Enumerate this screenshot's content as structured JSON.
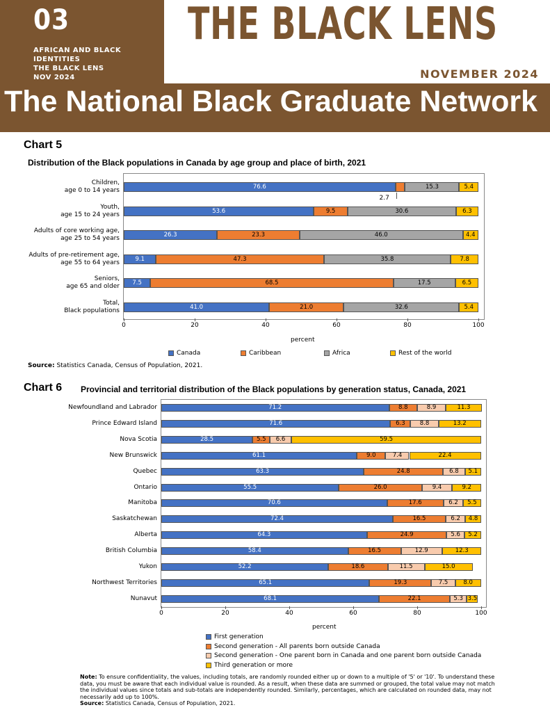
{
  "header": {
    "issue_number": "03",
    "issue_lines": [
      "AFRICAN AND BLACK",
      "IDENTITIES",
      "THE BLACK LENS",
      "NOV 2024"
    ],
    "logo": "THE BLACK LENS",
    "date": "NOVEMBER 2024",
    "banner": "The National Black Graduate Network"
  },
  "colors": {
    "brown": "#7b5530",
    "canada": "#4472c4",
    "caribbean": "#ed7d31",
    "africa": "#a5a5a5",
    "rest": "#ffc000",
    "first": "#4472c4",
    "second_all": "#ed7d31",
    "second_one": "#f8cbad",
    "third": "#ffc000"
  },
  "chart5": {
    "label": "Chart 5",
    "source_prefix": "Source:",
    "source_text": "Statistics Canada, Census of Population, 2021.",
    "callout": "2.7"
  },
  "chart6": {
    "label": "Chart 6",
    "source_prefix": "Source:",
    "source_text": "Statistics Canada, Census of Population, 2021."
  },
  "note": {
    "prefix": "Note:",
    "text": "To ensure confidentiality, the values, including totals, are randomly rounded either up or down to a multiple of '5' or '10'. To understand these data, you must be aware that each individual value is rounded. As a result, when these data are summed or grouped, the total value may not match the individual values since totals and sub-totals are independently rounded. Similarly, percentages, which are calculated on rounded data, may not necessarily add up to 100%."
  },
  "chart_data": [
    {
      "type": "bar",
      "stacked": true,
      "orientation": "horizontal",
      "title": "Distribution of the Black populations in Canada by age group and place of birth, 2021",
      "xlabel": "percent",
      "xlim": [
        0,
        100
      ],
      "xticks": [
        0,
        20,
        40,
        60,
        80,
        100
      ],
      "categories": [
        "Children,\nage 0 to 14 years",
        "Youth,\nage 15 to 24 years",
        "Adults of core working age,\nage 25 to 54 years",
        "Adults of pre-retirement age,\nage 55 to 64 years",
        "Seniors,\nage 65 and older",
        "Total,\nBlack populations"
      ],
      "series": [
        {
          "name": "Canada",
          "color": "#4472c4",
          "values": [
            76.6,
            53.6,
            26.3,
            9.1,
            7.5,
            41.0
          ]
        },
        {
          "name": "Caribbean",
          "color": "#ed7d31",
          "values": [
            2.7,
            9.5,
            23.3,
            47.3,
            68.5,
            21.0
          ]
        },
        {
          "name": "Africa",
          "color": "#a5a5a5",
          "values": [
            15.3,
            30.6,
            46.0,
            35.8,
            17.5,
            32.6
          ]
        },
        {
          "name": "Rest of the world",
          "color": "#ffc000",
          "values": [
            5.4,
            6.3,
            4.4,
            7.8,
            6.5,
            5.4
          ]
        }
      ],
      "legend": "bottom"
    },
    {
      "type": "bar",
      "stacked": true,
      "orientation": "horizontal",
      "title": "Provincial and territorial distribution of the Black populations by generation status, Canada, 2021",
      "xlabel": "percent",
      "xlim": [
        0,
        100
      ],
      "xticks": [
        0,
        20,
        40,
        60,
        80,
        100
      ],
      "categories": [
        "Newfoundland and Labrador",
        "Prince Edward Island",
        "Nova Scotia",
        "New Brunswick",
        "Quebec",
        "Ontario",
        "Manitoba",
        "Saskatchewan",
        "Alberta",
        "British Columbia",
        "Yukon",
        "Northwest Territories",
        "Nunavut"
      ],
      "series": [
        {
          "name": "First generation",
          "color": "#4472c4",
          "values": [
            71.2,
            71.6,
            28.5,
            61.1,
            63.3,
            55.5,
            70.6,
            72.4,
            64.3,
            58.4,
            52.2,
            65.1,
            68.1
          ]
        },
        {
          "name": "Second generation - All parents born outside Canada",
          "color": "#ed7d31",
          "values": [
            8.8,
            6.3,
            5.5,
            9.0,
            24.8,
            26.0,
            17.6,
            16.5,
            24.9,
            16.5,
            18.6,
            19.3,
            22.1
          ]
        },
        {
          "name": "Second generation - One parent born in Canada and one parent born outside Canada",
          "color": "#f8cbad",
          "values": [
            8.9,
            8.8,
            6.6,
            7.4,
            6.8,
            9.4,
            6.2,
            6.2,
            5.6,
            12.9,
            11.5,
            7.5,
            5.3
          ]
        },
        {
          "name": "Third generation or more",
          "color": "#ffc000",
          "values": [
            11.3,
            13.2,
            59.5,
            22.4,
            5.1,
            9.2,
            5.5,
            4.8,
            5.2,
            12.3,
            15.0,
            8.0,
            3.5
          ]
        }
      ],
      "legend": "bottom"
    }
  ]
}
